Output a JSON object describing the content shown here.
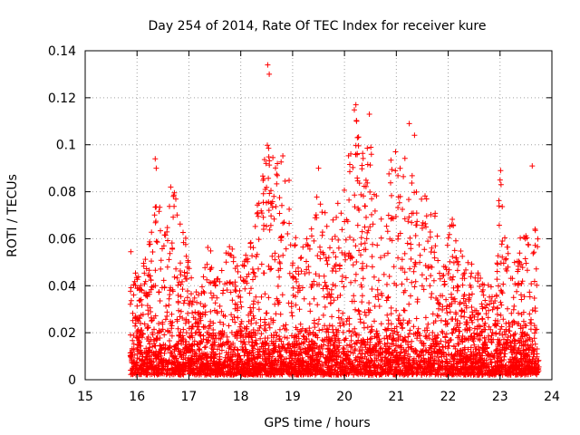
{
  "chart_data": {
    "type": "scatter",
    "title": "Day 254 of 2014, Rate Of TEC Index for receiver kure",
    "xlabel": "GPS time / hours",
    "ylabel": "ROTI / TECUs",
    "xlim": [
      15,
      24
    ],
    "ylim": [
      0,
      0.14
    ],
    "xticks": [
      15,
      16,
      17,
      18,
      19,
      20,
      21,
      22,
      23,
      24
    ],
    "xtick_labels": [
      "15",
      "16",
      "17",
      "18",
      "19",
      "20",
      "21",
      "22",
      "23",
      "24"
    ],
    "yticks": [
      0,
      0.02,
      0.04,
      0.06,
      0.08,
      0.1,
      0.12,
      0.14
    ],
    "ytick_labels": [
      "0",
      "0.02",
      "0.04",
      "0.06",
      "0.08",
      "0.1",
      "0.12",
      "0.14"
    ],
    "grid": true,
    "marker": "plus",
    "marker_color": "#ff0000",
    "x_data_range": [
      15.87,
      23.75
    ],
    "envelope": {
      "x": [
        15.9,
        16.1,
        16.3,
        16.4,
        16.5,
        16.7,
        16.9,
        17.0,
        17.2,
        17.4,
        17.6,
        17.8,
        18.0,
        18.2,
        18.4,
        18.5,
        18.6,
        18.8,
        18.9,
        19.0,
        19.2,
        19.4,
        19.5,
        19.7,
        19.9,
        20.0,
        20.2,
        20.3,
        20.5,
        20.7,
        20.9,
        21.1,
        21.3,
        21.5,
        21.7,
        21.9,
        22.1,
        22.3,
        22.5,
        22.7,
        22.9,
        23.0,
        23.2,
        23.4,
        23.6,
        23.75
      ],
      "y": [
        0.045,
        0.048,
        0.068,
        0.093,
        0.06,
        0.082,
        0.068,
        0.05,
        0.038,
        0.062,
        0.05,
        0.06,
        0.047,
        0.06,
        0.085,
        0.102,
        0.095,
        0.095,
        0.098,
        0.06,
        0.062,
        0.065,
        0.095,
        0.062,
        0.085,
        0.09,
        0.117,
        0.1,
        0.112,
        0.07,
        0.098,
        0.109,
        0.095,
        0.082,
        0.075,
        0.058,
        0.07,
        0.05,
        0.05,
        0.04,
        0.045,
        0.089,
        0.045,
        0.062,
        0.065,
        0.066
      ]
    },
    "highlights": [
      {
        "x": 18.52,
        "y": 0.134
      },
      {
        "x": 18.55,
        "y": 0.13
      },
      {
        "x": 20.22,
        "y": 0.117
      },
      {
        "x": 20.48,
        "y": 0.113
      },
      {
        "x": 21.25,
        "y": 0.109
      },
      {
        "x": 21.35,
        "y": 0.104
      },
      {
        "x": 20.25,
        "y": 0.103
      },
      {
        "x": 16.35,
        "y": 0.094
      },
      {
        "x": 16.37,
        "y": 0.09
      },
      {
        "x": 23.01,
        "y": 0.089
      },
      {
        "x": 23.0,
        "y": 0.085
      },
      {
        "x": 23.02,
        "y": 0.083
      },
      {
        "x": 23.62,
        "y": 0.091
      },
      {
        "x": 16.65,
        "y": 0.082
      },
      {
        "x": 16.7,
        "y": 0.078
      },
      {
        "x": 19.5,
        "y": 0.09
      },
      {
        "x": 19.78,
        "y": 0.068
      }
    ]
  }
}
